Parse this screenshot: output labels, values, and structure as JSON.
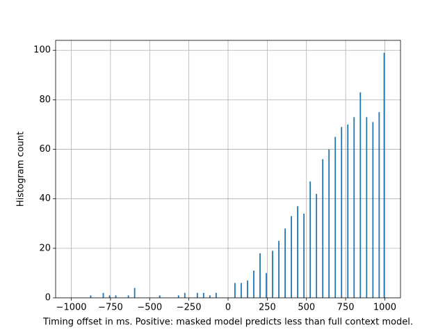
{
  "chart_data": {
    "type": "histogram",
    "xlabel": "Timing offset in ms. Positive: masked model predicts less than full context model.",
    "ylabel": "Histogram count",
    "color": "#1f77b4",
    "grid": true,
    "xlim": [
      -1100,
      1100
    ],
    "ylim": [
      0,
      104
    ],
    "xticks": [
      {
        "value": -1000,
        "label": "−1000"
      },
      {
        "value": -750,
        "label": "−750"
      },
      {
        "value": -500,
        "label": "−500"
      },
      {
        "value": -250,
        "label": "−250"
      },
      0,
      250,
      500,
      750,
      1000
    ],
    "yticks": [
      0,
      20,
      40,
      60,
      80,
      100
    ],
    "bins": [
      -1000,
      -992,
      -984,
      -976,
      -968,
      -960,
      -952,
      -944,
      -936,
      -928,
      -920,
      -912,
      -904,
      -896,
      -888,
      -880,
      -872,
      -864,
      -856,
      -848,
      -840,
      -832,
      -824,
      -816,
      -808,
      -800,
      -792,
      -784,
      -776,
      -768,
      -760,
      -752,
      -744,
      -736,
      -728,
      -720,
      -712,
      -704,
      -696,
      -688,
      -680,
      -672,
      -664,
      -656,
      -648,
      -640,
      -632,
      -624,
      -616,
      -608,
      -600,
      -592,
      -584,
      -576,
      -568,
      -560,
      -552,
      -544,
      -536,
      -528,
      -520,
      -512,
      -504,
      -496,
      -488,
      -480,
      -472,
      -464,
      -456,
      -448,
      -440,
      -432,
      -424,
      -416,
      -408,
      -400,
      -392,
      -384,
      -376,
      -368,
      -360,
      -352,
      -344,
      -336,
      -328,
      -320,
      -312,
      -304,
      -296,
      -288,
      -280,
      -272,
      -264,
      -256,
      -248,
      -240,
      -232,
      -224,
      -216,
      -208,
      -200,
      -192,
      -184,
      -176,
      -168,
      -160,
      -152,
      -144,
      -136,
      -128,
      -120,
      -112,
      -104,
      -96,
      -88,
      -80,
      -72,
      -64,
      -56,
      -48,
      -40,
      -32,
      -24,
      -16,
      -8,
      0,
      8,
      16,
      24,
      32,
      40,
      48,
      56,
      64,
      72,
      80,
      88,
      96,
      104,
      112,
      120,
      128,
      136,
      144,
      152,
      160,
      168,
      176,
      184,
      192,
      200,
      208,
      216,
      224,
      232,
      240,
      248,
      256,
      264,
      272,
      280,
      288,
      296,
      304,
      312,
      320,
      328,
      336,
      344,
      352,
      360,
      368,
      376,
      384,
      392,
      400,
      408,
      416,
      424,
      432,
      440,
      448,
      456,
      464,
      472,
      480,
      488,
      496,
      504,
      512,
      520,
      528,
      536,
      544,
      552,
      560,
      568,
      576,
      584,
      592,
      600,
      608,
      616,
      624,
      632,
      640,
      648,
      656,
      664,
      672,
      680,
      688,
      696,
      704,
      712,
      720,
      728,
      736,
      744,
      752,
      760,
      768,
      776,
      784,
      792,
      800,
      808,
      816,
      824,
      832,
      840,
      848,
      856,
      864,
      872,
      880,
      888,
      896,
      904,
      912,
      920,
      928,
      936,
      944,
      952,
      960,
      968,
      976,
      984,
      992,
      1000
    ],
    "values": [
      0,
      0,
      0,
      0,
      0,
      0,
      0,
      0,
      0,
      0,
      0,
      0,
      0,
      0,
      0,
      1,
      0,
      0,
      0,
      0,
      0,
      0,
      0,
      0,
      0,
      2,
      0,
      0,
      0,
      0,
      1,
      0,
      0,
      0,
      0,
      1,
      0,
      0,
      0,
      0,
      0,
      0,
      0,
      0,
      0,
      1,
      0,
      0,
      0,
      0,
      4,
      0,
      0,
      0,
      0,
      0,
      0,
      0,
      0,
      0,
      0,
      0,
      0,
      0,
      0,
      0,
      0,
      0,
      0,
      0,
      1,
      0,
      0,
      0,
      0,
      0,
      0,
      0,
      0,
      0,
      0,
      0,
      0,
      0,
      0,
      1,
      0,
      0,
      0,
      0,
      2,
      0,
      0,
      0,
      0,
      0,
      0,
      0,
      0,
      0,
      2,
      0,
      0,
      0,
      0,
      2,
      0,
      0,
      0,
      0,
      1,
      0,
      0,
      0,
      0,
      2,
      0,
      0,
      0,
      0,
      0,
      0,
      0,
      0,
      0,
      0,
      0,
      0,
      0,
      0,
      6,
      0,
      0,
      0,
      0,
      6,
      0,
      0,
      0,
      0,
      7,
      0,
      0,
      0,
      0,
      11,
      0,
      0,
      0,
      0,
      18,
      0,
      0,
      0,
      0,
      10,
      0,
      0,
      0,
      0,
      19,
      0,
      0,
      0,
      0,
      23,
      0,
      0,
      0,
      0,
      28,
      0,
      0,
      0,
      0,
      33,
      0,
      0,
      0,
      0,
      37,
      0,
      0,
      0,
      0,
      34,
      0,
      0,
      0,
      0,
      47,
      0,
      0,
      0,
      0,
      42,
      0,
      0,
      0,
      0,
      56,
      0,
      0,
      0,
      0,
      60,
      0,
      0,
      0,
      0,
      65,
      0,
      0,
      0,
      0,
      69,
      0,
      0,
      0,
      0,
      70,
      0,
      0,
      0,
      0,
      73,
      0,
      0,
      0,
      0,
      83,
      0,
      0,
      0,
      0,
      73,
      0,
      0,
      0,
      0,
      71,
      0,
      0,
      0,
      0,
      75,
      0,
      0,
      0,
      99
    ]
  }
}
